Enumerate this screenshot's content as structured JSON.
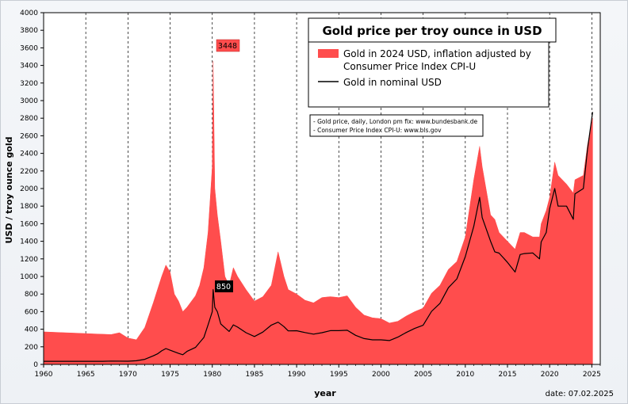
{
  "chart_data": {
    "type": "area",
    "title": "Gold price per troy ounce in USD",
    "xlabel": "year",
    "ylabel": "USD / troy ounce gold",
    "xlim": [
      1960,
      2026
    ],
    "ylim": [
      0,
      4000
    ],
    "x_ticks": [
      "1960",
      "1965",
      "1970",
      "1975",
      "1980",
      "1985",
      "1990",
      "1995",
      "2000",
      "2005",
      "2010",
      "2015",
      "2020",
      "2025"
    ],
    "y_ticks": [
      "0",
      "200",
      "400",
      "600",
      "800",
      "1000",
      "1200",
      "1400",
      "1600",
      "1800",
      "2000",
      "2200",
      "2400",
      "2600",
      "2800",
      "3000",
      "3200",
      "3400",
      "3600",
      "3800",
      "4000"
    ],
    "grid": "vertical dashed at each x tick",
    "legend_position": "top-right",
    "series": [
      {
        "name": "Gold in 2024 USD, inflation adjusted by Consumer Price Index CPI-U",
        "style": "area",
        "color": "#ff4d4d",
        "x": [
          1960,
          1962,
          1964,
          1966,
          1968,
          1969,
          1970,
          1971,
          1972,
          1973,
          1973.5,
          1974,
          1974.5,
          1975,
          1975.5,
          1976,
          1976.5,
          1977,
          1978,
          1978.5,
          1979,
          1979.5,
          1980.0,
          1980.1,
          1980.3,
          1980.6,
          1981,
          1981.5,
          1982,
          1982.5,
          1983,
          1984,
          1985,
          1986,
          1987,
          1987.8,
          1988.5,
          1989,
          1990,
          1991,
          1992,
          1993,
          1994,
          1995,
          1996,
          1997,
          1998,
          1999,
          2000,
          2001,
          2002,
          2003,
          2004,
          2005,
          2006,
          2007,
          2008,
          2009,
          2010,
          2011,
          2011.7,
          2012,
          2013,
          2013.5,
          2014,
          2015,
          2015.9,
          2016.5,
          2017,
          2018,
          2018.8,
          2019,
          2019.6,
          2020,
          2020.6,
          2021,
          2022,
          2022.8,
          2023,
          2024,
          2024.5,
          2025.1
        ],
        "values": [
          370,
          362,
          355,
          347,
          340,
          360,
          300,
          280,
          420,
          700,
          850,
          1000,
          1130,
          1050,
          800,
          720,
          600,
          650,
          780,
          900,
          1100,
          1500,
          2250,
          3448,
          2000,
          1700,
          1400,
          1000,
          900,
          1100,
          1000,
          850,
          720,
          770,
          900,
          1280,
          1000,
          850,
          800,
          730,
          700,
          760,
          770,
          760,
          780,
          650,
          560,
          530,
          520,
          470,
          490,
          550,
          600,
          640,
          810,
          900,
          1080,
          1170,
          1450,
          2100,
          2480,
          2250,
          1700,
          1650,
          1500,
          1400,
          1310,
          1500,
          1500,
          1450,
          1450,
          1600,
          1750,
          1900,
          2300,
          2150,
          2050,
          1950,
          2100,
          2150,
          2500,
          2800
        ]
      },
      {
        "name": "Gold in nominal USD",
        "style": "line",
        "color": "#000000",
        "x": [
          1960,
          1967,
          1968,
          1970,
          1971,
          1972,
          1973,
          1973.5,
          1974,
          1974.5,
          1975,
          1976,
          1976.5,
          1977,
          1978,
          1979,
          1979.5,
          1980.0,
          1980.1,
          1980.3,
          1980.6,
          1981,
          1982,
          1982.5,
          1983,
          1984,
          1985,
          1986,
          1987,
          1987.8,
          1988.5,
          1989,
          1990,
          1991,
          1992,
          1993,
          1994,
          1995,
          1996,
          1997,
          1998,
          1999,
          2000,
          2001,
          2002,
          2003,
          2004,
          2005,
          2006,
          2007,
          2008,
          2009,
          2010,
          2011,
          2011.7,
          2012,
          2013,
          2013.5,
          2014,
          2015,
          2015.9,
          2016.5,
          2017,
          2018,
          2018.8,
          2019,
          2019.6,
          2020,
          2020.6,
          2021,
          2022,
          2022.8,
          2023,
          2024,
          2024.5,
          2025.1
        ],
        "values": [
          35,
          35,
          38,
          36,
          41,
          58,
          97,
          120,
          154,
          180,
          161,
          125,
          110,
          148,
          193,
          306,
          450,
          600,
          850,
          650,
          600,
          460,
          375,
          450,
          424,
          360,
          317,
          368,
          447,
          480,
          430,
          381,
          383,
          362,
          344,
          360,
          384,
          384,
          388,
          331,
          294,
          279,
          279,
          271,
          310,
          363,
          409,
          445,
          604,
          695,
          872,
          973,
          1225,
          1570,
          1900,
          1670,
          1400,
          1280,
          1266,
          1160,
          1050,
          1250,
          1260,
          1268,
          1200,
          1393,
          1500,
          1770,
          2000,
          1800,
          1800,
          1650,
          1940,
          2000,
          2450,
          2870
        ]
      }
    ],
    "annotations": {
      "peak_real": "3448",
      "peak_nominal": "850"
    },
    "sources": [
      "- Gold price, daily, London pm fix: www.bundesbank.de",
      "- Consumer Price Index CPI-U: www.bls.gov"
    ],
    "date_label": "date:  07.02.2025"
  }
}
